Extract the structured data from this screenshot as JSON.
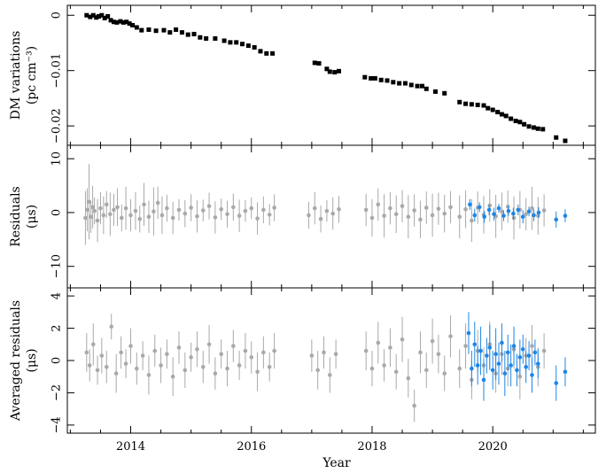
{
  "chart_data": [
    {
      "type": "scatter",
      "title": "",
      "xlabel": "",
      "ylabel_lines": [
        "DM variations",
        "(pc cm⁻³)"
      ],
      "xlim": [
        2012.95,
        2021.7
      ],
      "ylim": [
        -0.0235,
        0.0018
      ],
      "yticks": [
        0,
        -0.01,
        -0.02
      ],
      "ytick_labels": [
        "0",
        "−0.01",
        "−0.02"
      ],
      "grid": false,
      "series": [
        {
          "color": "#000000",
          "marker": "square",
          "x": [
            2013.27,
            2013.33,
            2013.38,
            2013.43,
            2013.47,
            2013.52,
            2013.57,
            2013.62,
            2013.67,
            2013.72,
            2013.77,
            2013.83,
            2013.88,
            2013.93,
            2013.98,
            2014.03,
            2014.1,
            2014.18,
            2014.3,
            2014.42,
            2014.55,
            2014.65,
            2014.75,
            2014.85,
            2014.95,
            2015.05,
            2015.15,
            2015.25,
            2015.4,
            2015.55,
            2015.65,
            2015.75,
            2015.85,
            2015.95,
            2016.05,
            2016.15,
            2016.25,
            2016.35,
            2017.05,
            2017.12,
            2017.25,
            2017.3,
            2017.38,
            2017.45,
            2017.88,
            2017.98,
            2018.05,
            2018.15,
            2018.25,
            2018.35,
            2018.45,
            2018.55,
            2018.65,
            2018.75,
            2018.83,
            2018.9,
            2019.05,
            2019.2,
            2019.45,
            2019.55,
            2019.65,
            2019.75,
            2019.85,
            2019.92,
            2020.0,
            2020.08,
            2020.15,
            2020.22,
            2020.3,
            2020.38,
            2020.45,
            2020.52,
            2020.6,
            2020.68,
            2020.75,
            2020.83,
            2021.05,
            2021.2
          ],
          "y": [
            0.0,
            -0.0003,
            0.0,
            -0.0004,
            -0.0002,
            0.0,
            -0.0005,
            -0.0002,
            -0.0009,
            -0.0012,
            -0.0013,
            -0.0011,
            -0.0013,
            -0.0012,
            -0.0015,
            -0.0018,
            -0.0022,
            -0.0027,
            -0.0026,
            -0.0028,
            -0.0027,
            -0.0031,
            -0.0026,
            -0.0031,
            -0.0035,
            -0.0034,
            -0.004,
            -0.0042,
            -0.0042,
            -0.0046,
            -0.0049,
            -0.0049,
            -0.0052,
            -0.0055,
            -0.0058,
            -0.0065,
            -0.0069,
            -0.0069,
            -0.0086,
            -0.0087,
            -0.0097,
            -0.0102,
            -0.0103,
            -0.0101,
            -0.0112,
            -0.0114,
            -0.0114,
            -0.0117,
            -0.0118,
            -0.0121,
            -0.0123,
            -0.0123,
            -0.0126,
            -0.0128,
            -0.0128,
            -0.0133,
            -0.0138,
            -0.0141,
            -0.0157,
            -0.016,
            -0.0161,
            -0.0162,
            -0.0163,
            -0.0168,
            -0.0171,
            -0.0175,
            -0.0179,
            -0.0182,
            -0.0187,
            -0.0191,
            -0.0193,
            -0.0197,
            -0.0201,
            -0.0203,
            -0.0205,
            -0.0206,
            -0.0221,
            -0.0227
          ]
        }
      ]
    },
    {
      "type": "scatter",
      "title": "",
      "xlabel": "",
      "ylabel_lines": [
        "Residuals",
        "(μs)"
      ],
      "xlim": [
        2012.95,
        2021.7
      ],
      "ylim": [
        -14,
        12.5
      ],
      "yticks": [
        10,
        0,
        -10
      ],
      "ytick_labels": [
        "10",
        "0",
        "−10"
      ],
      "grid": false,
      "series": [
        {
          "color": "#a9a9a9",
          "marker": "circle",
          "x": [
            2013.25,
            2013.28,
            2013.31,
            2013.34,
            2013.37,
            2013.4,
            2013.45,
            2013.5,
            2013.55,
            2013.6,
            2013.66,
            2013.72,
            2013.78,
            2013.85,
            2013.92,
            2014.0,
            2014.08,
            2014.15,
            2014.22,
            2014.3,
            2014.38,
            2014.45,
            2014.52,
            2014.6,
            2014.7,
            2014.8,
            2014.9,
            2015.0,
            2015.1,
            2015.2,
            2015.3,
            2015.4,
            2015.5,
            2015.6,
            2015.7,
            2015.8,
            2015.9,
            2016.0,
            2016.1,
            2016.2,
            2016.3,
            2016.38,
            2016.95,
            2017.05,
            2017.15,
            2017.25,
            2017.35,
            2017.45,
            2017.9,
            2018.0,
            2018.1,
            2018.2,
            2018.3,
            2018.4,
            2018.5,
            2018.6,
            2018.7,
            2018.8,
            2018.9,
            2019.0,
            2019.1,
            2019.2,
            2019.3,
            2019.45,
            2019.55,
            2019.65,
            2019.75,
            2019.85,
            2019.95,
            2020.05,
            2020.15,
            2020.25,
            2020.35,
            2020.45,
            2020.55,
            2020.65,
            2020.75,
            2020.85
          ],
          "y": [
            -1,
            0.5,
            2,
            -0.8,
            1,
            0.3,
            -1.5,
            0.8,
            -0.5,
            1.5,
            -0.3,
            0.5,
            1,
            -1,
            0.8,
            -0.5,
            0.3,
            -1.2,
            1.5,
            -0.8,
            0.2,
            1.8,
            -0.5,
            0.8,
            -1,
            0.5,
            -0.2,
            0.9,
            -0.7,
            0.4,
            1.2,
            -0.9,
            0.6,
            -0.3,
            1,
            -0.6,
            0.3,
            0.8,
            -1.1,
            0.5,
            -0.4,
            0.9,
            -0.5,
            0.8,
            -1.2,
            0.3,
            -0.2,
            0.6,
            0.5,
            -1,
            1.5,
            -0.6,
            0.8,
            -0.3,
            1.2,
            -0.8,
            0.4,
            -1.3,
            0.9,
            -0.5,
            0.7,
            -0.2,
            1,
            -0.8,
            0.6,
            -1.5,
            0.9,
            -0.4,
            1.3,
            -0.7,
            0.2,
            1.1,
            -1,
            0.5,
            -0.3,
            0.8,
            -0.6,
            0.4
          ],
          "yerr": [
            5,
            4,
            7,
            3,
            4,
            2.5,
            4,
            3,
            3.5,
            2.5,
            4,
            3,
            3.5,
            2.5,
            4,
            3,
            3.5,
            2.5,
            4,
            3,
            4.5,
            3,
            3.5,
            2.5,
            3,
            2,
            2.5,
            2.5,
            3,
            2,
            2.5,
            3,
            2,
            2.5,
            2.5,
            3,
            2,
            2,
            3,
            2.5,
            2,
            2.5,
            2.5,
            3,
            2.5,
            2,
            3,
            2.5,
            3,
            3.5,
            3,
            4,
            3,
            3.5,
            3,
            4,
            3,
            3.5,
            3,
            4,
            3,
            3.5,
            3,
            4,
            3.5,
            4,
            3,
            3.5,
            3,
            4,
            3.5,
            3,
            4,
            3.5,
            3,
            4,
            3.5,
            3
          ]
        },
        {
          "color": "#1e86e6",
          "marker": "circle",
          "x": [
            2019.62,
            2019.7,
            2019.78,
            2019.86,
            2019.94,
            2020.02,
            2020.1,
            2020.18,
            2020.26,
            2020.34,
            2020.42,
            2020.5,
            2020.6,
            2020.68,
            2020.76,
            2021.05,
            2021.2
          ],
          "y": [
            1.5,
            -0.5,
            1,
            -0.8,
            0.5,
            -0.3,
            0.8,
            -0.6,
            0.3,
            -0.2,
            0.5,
            -0.8,
            0.2,
            -0.5,
            0,
            -1.3,
            -0.6
          ],
          "yerr": [
            1,
            1.2,
            0.9,
            1.1,
            1,
            1.2,
            0.8,
            1,
            0.9,
            1.1,
            1,
            1.2,
            0.9,
            1.1,
            1,
            1.5,
            1.2
          ]
        }
      ]
    },
    {
      "type": "scatter",
      "title": "",
      "xlabel": "Year",
      "ylabel_lines": [
        "Averaged residuals",
        "(μs)"
      ],
      "xlim": [
        2012.95,
        2021.7
      ],
      "ylim": [
        -4.5,
        4.5
      ],
      "yticks": [
        4,
        2,
        0,
        -2,
        -4
      ],
      "ytick_labels": [
        "4",
        "2",
        "0",
        "−2",
        "−4"
      ],
      "xticks": [
        2014,
        2016,
        2018,
        2020
      ],
      "xtick_labels": [
        "2014",
        "2016",
        "2018",
        "2020"
      ],
      "grid": false,
      "series": [
        {
          "color": "#a9a9a9",
          "marker": "circle",
          "x": [
            2013.27,
            2013.32,
            2013.38,
            2013.45,
            2013.52,
            2013.6,
            2013.68,
            2013.76,
            2013.84,
            2013.92,
            2014.0,
            2014.1,
            2014.2,
            2014.3,
            2014.4,
            2014.5,
            2014.6,
            2014.7,
            2014.8,
            2014.9,
            2015.0,
            2015.1,
            2015.2,
            2015.3,
            2015.4,
            2015.5,
            2015.6,
            2015.7,
            2015.8,
            2015.9,
            2016.0,
            2016.1,
            2016.2,
            2016.3,
            2016.38,
            2017.0,
            2017.1,
            2017.2,
            2017.3,
            2017.4,
            2017.9,
            2018.0,
            2018.1,
            2018.2,
            2018.3,
            2018.4,
            2018.5,
            2018.6,
            2018.7,
            2018.8,
            2018.9,
            2019.0,
            2019.1,
            2019.2,
            2019.3,
            2019.45,
            2019.55,
            2019.65,
            2019.75,
            2019.85,
            2019.95,
            2020.05,
            2020.15,
            2020.25,
            2020.35,
            2020.45,
            2020.55,
            2020.65,
            2020.75,
            2020.85
          ],
          "y": [
            0.5,
            -0.3,
            1,
            -0.6,
            0.3,
            -0.4,
            2.1,
            -0.8,
            0.5,
            -0.2,
            0.9,
            -0.5,
            0.3,
            -0.9,
            0.6,
            -0.3,
            0.4,
            -1,
            0.8,
            -0.6,
            0.2,
            0.7,
            -0.4,
            1,
            -0.8,
            0.4,
            -0.5,
            0.9,
            -0.3,
            0.6,
            0.2,
            -0.7,
            0.5,
            -0.4,
            0.6,
            0.3,
            -0.6,
            0.5,
            -0.9,
            0.4,
            0.6,
            -0.5,
            1.1,
            -0.3,
            0.8,
            -0.7,
            1.3,
            -1.1,
            -2.8,
            0.5,
            -0.6,
            1.2,
            0.4,
            -0.8,
            1.5,
            -0.5,
            0.9,
            -1.2,
            0.6,
            -0.3,
            1,
            -0.8,
            0.4,
            -0.5,
            0.7,
            -1,
            0.3,
            0.9,
            -0.4,
            0.6
          ],
          "yerr": [
            1.2,
            1,
            1.3,
            0.9,
            1.1,
            1,
            0.8,
            1.2,
            1,
            0.9,
            1.1,
            1,
            0.9,
            1.2,
            1,
            1.1,
            0.9,
            1.2,
            1,
            1.1,
            0.9,
            1.1,
            1,
            1.2,
            1,
            0.9,
            1.1,
            1,
            0.9,
            1.1,
            1,
            1.2,
            1,
            0.9,
            1.1,
            1,
            1.2,
            1,
            1.1,
            0.9,
            1.2,
            1.1,
            1.3,
            1,
            1.2,
            1.1,
            1.4,
            1.2,
            1,
            1.3,
            1.1,
            1.4,
            1.2,
            1.1,
            1.3,
            1.2,
            1.4,
            1.2,
            1.3,
            1.1,
            1.4,
            1.2,
            1.3,
            1.1,
            1.2,
            1.4,
            1.1,
            1.3,
            1.2,
            1.1
          ]
        },
        {
          "color": "#1e86e6",
          "marker": "circle",
          "x": [
            2019.6,
            2019.65,
            2019.7,
            2019.75,
            2019.8,
            2019.85,
            2019.9,
            2019.95,
            2020.0,
            2020.05,
            2020.1,
            2020.15,
            2020.2,
            2020.25,
            2020.3,
            2020.35,
            2020.4,
            2020.45,
            2020.5,
            2020.55,
            2020.6,
            2020.65,
            2020.7,
            2020.75,
            2021.05,
            2021.2
          ],
          "y": [
            1.7,
            -0.5,
            1,
            -0.3,
            0.6,
            -1.2,
            0.3,
            0.8,
            -0.6,
            0.4,
            -0.2,
            1.1,
            -0.8,
            0.5,
            -0.3,
            0.9,
            -0.6,
            0.2,
            0.7,
            -0.4,
            0.3,
            -0.9,
            0.5,
            -0.2,
            -1.4,
            -0.7
          ],
          "yerr": [
            1.3,
            1.1,
            1.4,
            1.2,
            1.5,
            1.3,
            1.1,
            1.4,
            1.2,
            1.6,
            1.3,
            1.2,
            1.4,
            1.1,
            1.3,
            1.2,
            1,
            1.1,
            0.9,
            1,
            0.9,
            1.1,
            0.8,
            0.9,
            1.1,
            0.9
          ]
        }
      ]
    }
  ]
}
